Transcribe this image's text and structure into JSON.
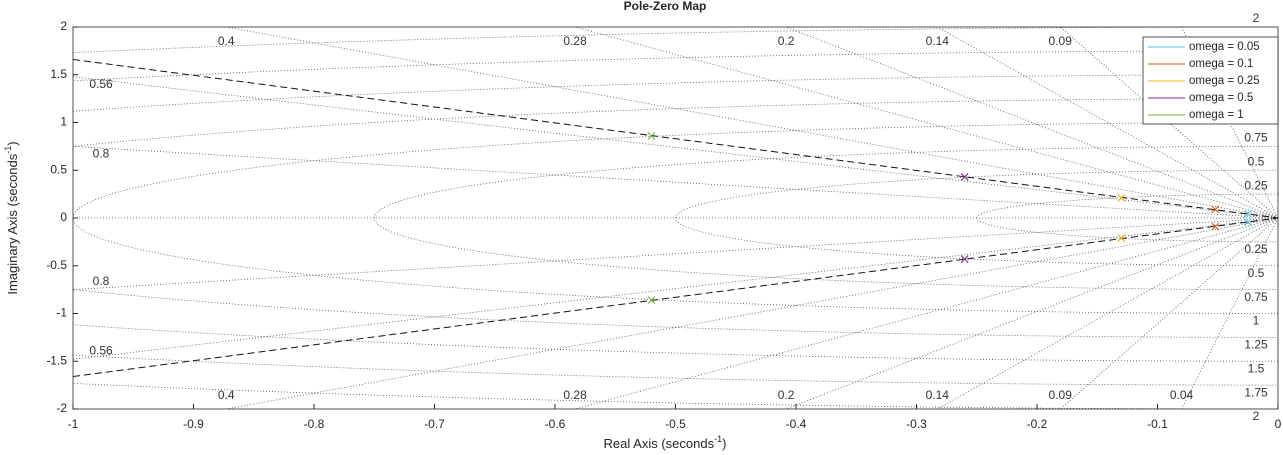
{
  "chart_data": {
    "type": "pole-zero",
    "title": "Pole-Zero Map",
    "x_label": [
      "Real Axis (seconds",
      "-1",
      ")"
    ],
    "y_label": [
      "Imaginary Axis (seconds",
      "-1",
      ")"
    ],
    "xlim": [
      -1,
      0
    ],
    "ylim": [
      -2,
      2
    ],
    "xticks": [
      -1,
      -0.9,
      -0.8,
      -0.7,
      -0.6,
      -0.5,
      -0.4,
      -0.3,
      -0.2,
      -0.1,
      0
    ],
    "yticks": [
      -2,
      -1.5,
      -1,
      -0.5,
      0,
      0.5,
      1,
      1.5,
      2
    ],
    "damping_grid": [
      0.8,
      0.56,
      0.4,
      0.28,
      0.2,
      0.14,
      0.09,
      0.04
    ],
    "frequency_grid": [
      0.25,
      0.5,
      0.75,
      1,
      1.25,
      1.5,
      1.75,
      2
    ],
    "legend": "northeast",
    "guide_lines": [
      {
        "x": [
          -1,
          0
        ],
        "y": [
          1.66,
          0
        ]
      },
      {
        "x": [
          -1,
          0
        ],
        "y": [
          -1.66,
          0
        ]
      }
    ],
    "series": [
      {
        "name": "omega = 0.05",
        "color": "#4dbeee",
        "x": [
          -0.025,
          -0.025
        ],
        "y": [
          0.043,
          -0.043
        ]
      },
      {
        "name": "omega = 0.1",
        "color": "#d95319",
        "x": [
          -0.052,
          -0.052
        ],
        "y": [
          0.09,
          -0.09
        ]
      },
      {
        "name": "omega = 0.25",
        "color": "#edb120",
        "x": [
          -0.13,
          -0.13
        ],
        "y": [
          0.21,
          -0.21
        ]
      },
      {
        "name": "omega = 0.5",
        "color": "#7e2f8e",
        "x": [
          -0.26,
          -0.26
        ],
        "y": [
          0.43,
          -0.43
        ]
      },
      {
        "name": "omega = 1",
        "color": "#77ac30",
        "x": [
          -0.52,
          -0.52
        ],
        "y": [
          0.86,
          -0.86
        ]
      }
    ]
  }
}
